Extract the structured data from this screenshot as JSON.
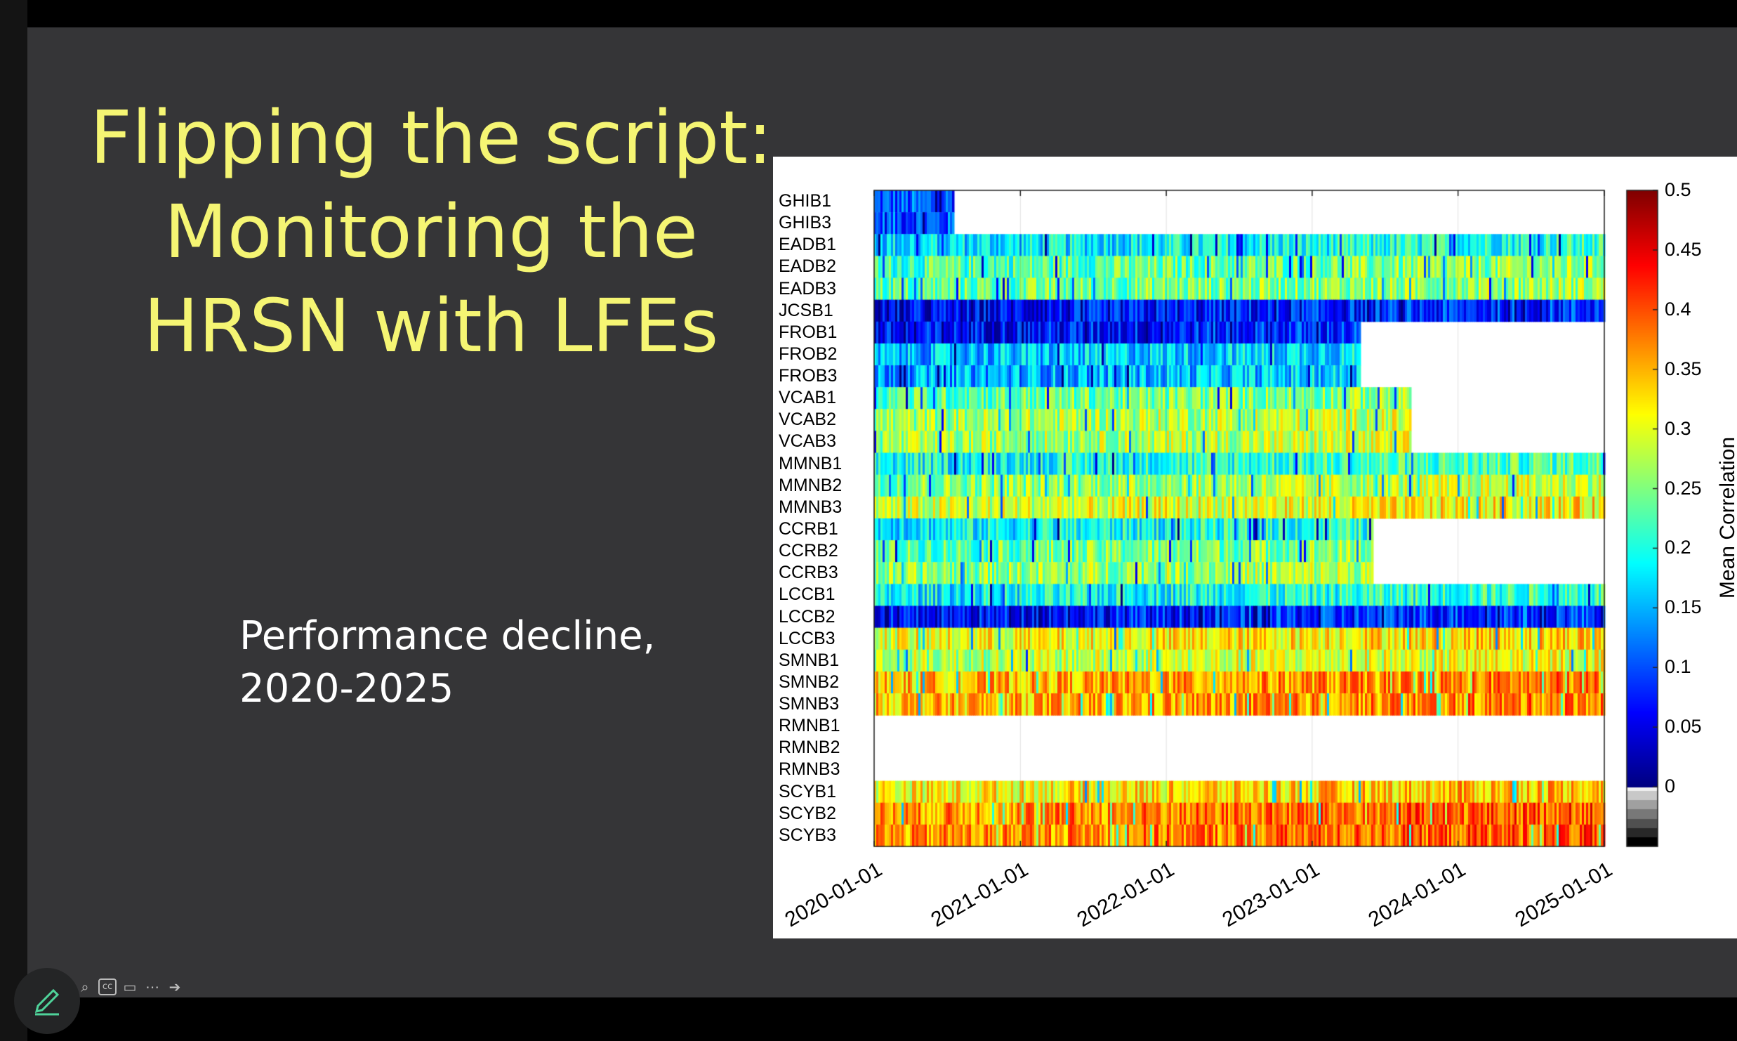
{
  "slide": {
    "title_lines": [
      "Flipping the script:",
      "Monitoring the",
      "HRSN with LFEs"
    ],
    "subtitle_lines": [
      "Performance decline,",
      "2020-2025"
    ]
  },
  "colors": {
    "background": "#353537",
    "title": "#f5f573",
    "subtitle": "#ffffff"
  },
  "chart_data": {
    "type": "heatmap",
    "title": "",
    "stations": [
      "GHIB1",
      "GHIB3",
      "EADB1",
      "EADB2",
      "EADB3",
      "JCSB1",
      "FROB1",
      "FROB2",
      "FROB3",
      "VCAB1",
      "VCAB2",
      "VCAB3",
      "MMNB1",
      "MMNB2",
      "MMNB3",
      "CCRB1",
      "CCRB2",
      "CCRB3",
      "LCCB1",
      "LCCB2",
      "LCCB3",
      "SMNB1",
      "SMNB2",
      "SMNB3",
      "RMNB1",
      "RMNB2",
      "RMNB3",
      "SCYB1",
      "SCYB2",
      "SCYB3"
    ],
    "x_tick_labels": [
      "2020-01-01",
      "2021-01-01",
      "2022-01-01",
      "2023-01-01",
      "2024-01-01",
      "2025-01-01"
    ],
    "x_range": [
      "2020-01-01",
      "2025-01-01"
    ],
    "colorbar": {
      "label": "Mean Correlation",
      "ticks": [
        "0.5",
        "0.45",
        "0.4",
        "0.35",
        "0.3",
        "0.25",
        "0.2",
        "0.15",
        "0.1",
        "0.05",
        "0"
      ],
      "range": [
        -0.05,
        0.5
      ],
      "colormap": "jet"
    },
    "approx_station_correlation": {
      "GHIB1": {
        "active": [
          "2020-01-01",
          "2020-07-15"
        ],
        "mean": 0.12
      },
      "GHIB3": {
        "active": [
          "2020-01-01",
          "2020-07-15"
        ],
        "mean": 0.12
      },
      "EADB1": {
        "active": [
          "2020-01-01",
          "2025-01-01"
        ],
        "mean": 0.19
      },
      "EADB2": {
        "active": [
          "2020-01-01",
          "2025-01-01"
        ],
        "mean": 0.24
      },
      "EADB3": {
        "active": [
          "2020-01-01",
          "2025-01-01"
        ],
        "mean": 0.25
      },
      "JCSB1": {
        "active": [
          "2020-01-01",
          "2025-01-01"
        ],
        "mean": 0.07
      },
      "FROB1": {
        "active": [
          "2020-01-01",
          "2023-05-01"
        ],
        "mean": 0.08
      },
      "FROB2": {
        "active": [
          "2020-01-01",
          "2023-05-01"
        ],
        "mean": 0.17
      },
      "FROB3": {
        "active": [
          "2020-01-01",
          "2023-05-01"
        ],
        "mean": 0.16
      },
      "VCAB1": {
        "active": [
          "2020-01-01",
          "2023-09-01"
        ],
        "mean": 0.25
      },
      "VCAB2": {
        "active": [
          "2020-01-01",
          "2023-09-01"
        ],
        "mean": 0.28
      },
      "VCAB3": {
        "active": [
          "2020-01-01",
          "2023-09-01"
        ],
        "mean": 0.28
      },
      "MMNB1": {
        "active": [
          "2020-01-01",
          "2025-01-01"
        ],
        "mean": 0.21
      },
      "MMNB2": {
        "active": [
          "2020-01-01",
          "2025-01-01"
        ],
        "mean": 0.27
      },
      "MMNB3": {
        "active": [
          "2020-01-01",
          "2025-01-01"
        ],
        "mean": 0.3
      },
      "CCRB1": {
        "active": [
          "2020-01-01",
          "2023-06-01"
        ],
        "mean": 0.2
      },
      "CCRB2": {
        "active": [
          "2020-01-01",
          "2023-06-01"
        ],
        "mean": 0.25
      },
      "CCRB3": {
        "active": [
          "2020-01-01",
          "2023-06-01"
        ],
        "mean": 0.27
      },
      "LCCB1": {
        "active": [
          "2020-01-01",
          "2025-01-01"
        ],
        "mean": 0.2
      },
      "LCCB2": {
        "active": [
          "2020-01-01",
          "2025-01-01"
        ],
        "mean": 0.08
      },
      "LCCB3": {
        "active": [
          "2020-01-01",
          "2025-01-01"
        ],
        "mean": 0.32
      },
      "SMNB1": {
        "active": [
          "2020-01-01",
          "2025-01-01"
        ],
        "mean": 0.29
      },
      "SMNB2": {
        "active": [
          "2020-01-01",
          "2025-01-01"
        ],
        "mean": 0.36
      },
      "SMNB3": {
        "active": [
          "2020-01-01",
          "2025-01-01"
        ],
        "mean": 0.36
      },
      "RMNB1": {
        "active": null,
        "mean": null
      },
      "RMNB2": {
        "active": null,
        "mean": null
      },
      "RMNB3": {
        "active": null,
        "mean": null
      },
      "SCYB1": {
        "active": [
          "2020-01-01",
          "2025-01-01"
        ],
        "mean": 0.33
      },
      "SCYB2": {
        "active": [
          "2020-01-01",
          "2025-01-01"
        ],
        "mean": 0.38
      },
      "SCYB3": {
        "active": [
          "2020-01-01",
          "2025-01-01"
        ],
        "mean": 0.38
      }
    }
  },
  "toolbar": {
    "icons": [
      "zoom-icon",
      "captions-icon",
      "video-icon",
      "more-icon",
      "next-icon"
    ],
    "pen_icon": "pen-icon"
  }
}
